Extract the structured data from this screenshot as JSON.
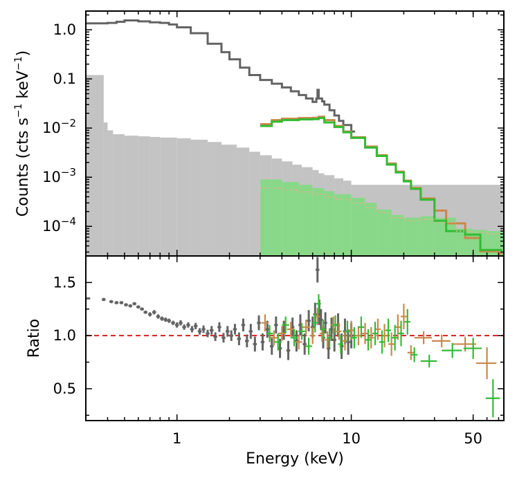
{
  "chart_data": [
    {
      "panel": "top",
      "type": "line",
      "ylabel": "Counts (cts s⁻¹ keV⁻¹)",
      "ylabel_parts": {
        "a": "Counts (cts s",
        "s1": "−1",
        "b": " keV",
        "s2": "−1",
        "c": ")"
      },
      "xscale": "log",
      "yscale": "log",
      "xlim": [
        0.3,
        75
      ],
      "ylim": [
        2.5e-05,
        2.4
      ],
      "yticks": [
        {
          "value": 1.0,
          "base": "1.0"
        },
        {
          "value": 0.1,
          "base": "0.1"
        },
        {
          "value": 0.01,
          "base": "10",
          "exp": "−2"
        },
        {
          "value": 0.001,
          "base": "10",
          "exp": "−3"
        },
        {
          "value": 0.0001,
          "base": "10",
          "exp": "−4"
        }
      ],
      "series": [
        {
          "color": "#636363",
          "style": "step-line",
          "x": [
            0.3,
            0.4,
            0.45,
            0.5,
            0.55,
            0.6,
            0.7,
            0.8,
            0.9,
            1.0,
            1.2,
            1.5,
            1.8,
            2.0,
            2.3,
            2.6,
            3.0,
            3.5,
            4.0,
            4.5,
            5.0,
            5.5,
            6.0,
            6.3,
            6.4,
            6.5,
            6.8,
            7.0,
            7.5,
            8.0,
            8.5,
            9.0,
            10.0
          ],
          "values": [
            1.35,
            1.38,
            1.45,
            1.55,
            1.55,
            1.48,
            1.42,
            1.38,
            1.28,
            1.12,
            0.85,
            0.52,
            0.35,
            0.25,
            0.17,
            0.12,
            0.095,
            0.08,
            0.067,
            0.056,
            0.047,
            0.04,
            0.034,
            0.04,
            0.06,
            0.04,
            0.035,
            0.03,
            0.023,
            0.018,
            0.014,
            0.0115,
            0.0085
          ]
        },
        {
          "color": "#c8884a",
          "style": "step-line",
          "x": [
            3.0,
            3.5,
            4.0,
            5.0,
            6.0,
            6.5,
            7.0,
            8.0,
            9.0,
            10.0,
            12.0,
            14.0,
            16.0,
            18.0,
            20.0,
            22.0,
            25.0,
            30.0,
            35.0,
            45.0,
            55.0,
            70.0
          ],
          "values": [
            0.012,
            0.0145,
            0.0155,
            0.016,
            0.0162,
            0.017,
            0.0145,
            0.011,
            0.0085,
            0.0065,
            0.0042,
            0.0028,
            0.0019,
            0.0013,
            0.00085,
            0.0006,
            0.00037,
            0.00021,
            0.000115,
            5.8e-05,
            3.1e-05,
            2.8e-05
          ]
        },
        {
          "color": "#33bb33",
          "style": "step-line",
          "x": [
            3.0,
            3.5,
            4.0,
            5.0,
            6.0,
            6.5,
            7.0,
            8.0,
            9.0,
            10.0,
            12.0,
            14.0,
            16.0,
            18.0,
            20.0,
            22.0,
            25.0,
            30.0,
            35.0,
            45.0,
            55.0,
            70.0
          ],
          "values": [
            0.011,
            0.0135,
            0.0145,
            0.015,
            0.0152,
            0.016,
            0.013,
            0.0105,
            0.0082,
            0.0063,
            0.004,
            0.0027,
            0.0018,
            0.00125,
            0.00082,
            0.00058,
            0.00035,
            0.00013,
            8e-05,
            6.8e-05,
            3.3e-05,
            3.3e-05
          ]
        },
        {
          "color": "#b8b8b8",
          "style": "filled-histogram",
          "x": [
            0.3,
            0.36,
            0.38,
            0.4,
            0.43,
            0.5,
            0.6,
            0.7,
            0.8,
            1.0,
            1.2,
            1.5,
            1.8,
            2.2,
            2.6,
            3.0,
            3.5,
            4.0,
            4.6,
            5.2,
            6.0,
            6.5,
            7.0,
            8.0,
            9.0,
            10.0
          ],
          "values": [
            0.12,
            0.12,
            0.013,
            0.009,
            0.0075,
            0.007,
            0.0068,
            0.0066,
            0.0064,
            0.0062,
            0.0058,
            0.0052,
            0.0046,
            0.004,
            0.0033,
            0.0028,
            0.0024,
            0.0021,
            0.0018,
            0.0016,
            0.0014,
            0.0012,
            0.0011,
            0.00095,
            0.00085,
            0.0007
          ]
        },
        {
          "color": "#7fdc7f",
          "style": "filled-histogram",
          "x": [
            3.0,
            4.0,
            5.0,
            6.0,
            7.0,
            8.0,
            10.0,
            12.0,
            14.0,
            17.0,
            20.0,
            25.0,
            30.0,
            40.0,
            50.0,
            60.0,
            75.0
          ],
          "values": [
            0.0009,
            0.0008,
            0.0007,
            0.0006,
            0.00052,
            0.00045,
            0.00038,
            0.0003,
            0.00022,
            0.00017,
            0.00015,
            0.00016,
            0.00015,
            9e-05,
            8.5e-05,
            8e-05,
            7e-05
          ]
        },
        {
          "color": "#e8b08a",
          "style": "dotted-line",
          "x": [
            3.0,
            4.0,
            5.0,
            6.0,
            7.0,
            8.0,
            10.0,
            12.0,
            14.0,
            17.0,
            20.0,
            25.0,
            30.0,
            40.0,
            50.0,
            60.0,
            75.0
          ],
          "values": [
            0.0006,
            0.00055,
            0.0005,
            0.00045,
            0.0004,
            0.00036,
            0.0003,
            0.00024,
            0.00019,
            0.00015,
            0.00013,
            0.00014,
            0.00012,
            8e-05,
            7.5e-05,
            7e-05,
            6.5e-05
          ]
        }
      ]
    },
    {
      "panel": "bottom",
      "type": "scatter",
      "xlabel": "Energy (keV)",
      "ylabel": "Ratio",
      "xscale": "log",
      "xlim": [
        0.3,
        75
      ],
      "ylim": [
        0.2,
        1.75
      ],
      "xticks": [
        {
          "value": 1,
          "label": "1"
        },
        {
          "value": 10,
          "label": "10"
        },
        {
          "value": 50,
          "label": "50"
        }
      ],
      "yticks": [
        {
          "value": 0.5,
          "label": "0.5"
        },
        {
          "value": 1.0,
          "label": "1.0"
        },
        {
          "value": 1.5,
          "label": "1.5"
        }
      ],
      "reference_line": {
        "y": 1.0,
        "color": "#dd1c1c",
        "style": "dashed"
      },
      "series": [
        {
          "color": "#636363",
          "x": [
            0.31,
            0.38,
            0.42,
            0.45,
            0.48,
            0.51,
            0.54,
            0.57,
            0.6,
            0.63,
            0.66,
            0.7,
            0.74,
            0.78,
            0.82,
            0.86,
            0.9,
            0.95,
            1.0,
            1.05,
            1.1,
            1.16,
            1.22,
            1.28,
            1.35,
            1.42,
            1.5,
            1.58,
            1.66,
            1.75,
            1.85,
            1.95,
            2.05,
            2.15,
            2.27,
            2.4,
            2.52,
            2.65,
            2.8,
            2.95,
            3.1,
            3.3,
            3.5,
            3.7,
            3.9,
            4.1,
            4.35,
            4.6,
            4.85,
            5.1,
            5.4,
            5.7,
            6.0,
            6.2,
            6.4,
            6.55,
            6.7,
            6.9,
            7.1,
            7.4,
            7.7,
            8.0,
            8.4,
            8.8,
            9.2,
            9.6,
            10.0
          ],
          "values": [
            1.35,
            1.34,
            1.32,
            1.31,
            1.31,
            1.29,
            1.28,
            1.3,
            1.27,
            1.25,
            1.22,
            1.2,
            1.22,
            1.18,
            1.16,
            1.15,
            1.14,
            1.12,
            1.1,
            1.12,
            1.08,
            1.1,
            1.06,
            1.09,
            1.04,
            1.06,
            1.02,
            1.05,
            0.99,
            1.08,
            0.98,
            1.04,
            1.0,
            1.06,
            0.97,
            1.1,
            0.95,
            1.04,
            0.92,
            1.12,
            0.94,
            1.06,
            0.9,
            1.1,
            0.88,
            1.05,
            0.86,
            1.08,
            0.95,
            1.1,
            0.92,
            1.14,
            1.08,
            1.2,
            1.62,
            1.22,
            1.15,
            0.98,
            1.12,
            0.88,
            1.06,
            0.96,
            1.1,
            0.9,
            1.04,
            0.94,
            1.0
          ],
          "yerr": [
            0.01,
            0.015,
            0.015,
            0.015,
            0.015,
            0.015,
            0.015,
            0.015,
            0.015,
            0.015,
            0.015,
            0.02,
            0.02,
            0.02,
            0.02,
            0.02,
            0.02,
            0.02,
            0.025,
            0.025,
            0.025,
            0.025,
            0.03,
            0.03,
            0.03,
            0.035,
            0.035,
            0.04,
            0.04,
            0.045,
            0.045,
            0.05,
            0.05,
            0.05,
            0.06,
            0.06,
            0.06,
            0.07,
            0.07,
            0.07,
            0.08,
            0.08,
            0.08,
            0.08,
            0.09,
            0.09,
            0.09,
            0.09,
            0.1,
            0.1,
            0.1,
            0.1,
            0.1,
            0.11,
            0.12,
            0.12,
            0.1,
            0.1,
            0.1,
            0.1,
            0.11,
            0.11,
            0.11,
            0.12,
            0.12,
            0.12,
            0.12
          ]
        },
        {
          "color": "#c8884a",
          "x": [
            3.2,
            3.6,
            4.0,
            4.5,
            5.0,
            5.5,
            6.0,
            6.4,
            6.8,
            7.3,
            7.9,
            8.5,
            9.2,
            10.0,
            11.0,
            12.0,
            13.0,
            14.2,
            15.5,
            17.0,
            18.5,
            20.0,
            22.0,
            26.0,
            33.0,
            45.0,
            60.0
          ],
          "values": [
            1.12,
            0.98,
            1.02,
            1.06,
            0.94,
            1.08,
            1.0,
            1.18,
            1.02,
            0.96,
            1.1,
            1.04,
            0.95,
            1.05,
            1.0,
            1.02,
            0.98,
            1.06,
            1.0,
            0.92,
            1.08,
            1.18,
            0.84,
            0.98,
            0.95,
            0.92,
            0.74
          ],
          "yerr": [
            0.08,
            0.07,
            0.07,
            0.07,
            0.07,
            0.07,
            0.08,
            0.08,
            0.08,
            0.08,
            0.08,
            0.08,
            0.09,
            0.09,
            0.09,
            0.1,
            0.1,
            0.1,
            0.11,
            0.11,
            0.12,
            0.12,
            0.07,
            0.06,
            0.06,
            0.07,
            0.15
          ],
          "xerr": [
            0.15,
            0.18,
            0.2,
            0.22,
            0.24,
            0.26,
            0.22,
            0.2,
            0.22,
            0.25,
            0.28,
            0.3,
            0.35,
            0.4,
            0.45,
            0.5,
            0.5,
            0.55,
            0.6,
            0.7,
            0.75,
            0.8,
            1.0,
            3.0,
            4.0,
            7.0,
            8.0
          ]
        },
        {
          "color": "#33bb33",
          "x": [
            3.4,
            3.8,
            4.2,
            4.7,
            5.2,
            5.7,
            6.2,
            6.5,
            6.9,
            7.5,
            8.1,
            8.7,
            9.5,
            10.4,
            11.4,
            12.5,
            13.7,
            15.0,
            16.3,
            17.8,
            19.3,
            21.0,
            23.0,
            28.0,
            38.0,
            50.0,
            65.0
          ],
          "values": [
            1.02,
            0.94,
            1.1,
            0.98,
            1.04,
            0.9,
            1.12,
            1.3,
            1.06,
            0.98,
            1.1,
            0.92,
            1.04,
            0.98,
            1.08,
            0.96,
            1.02,
            0.94,
            1.05,
            0.98,
            1.02,
            1.13,
            0.82,
            0.76,
            0.86,
            0.88,
            0.41
          ],
          "yerr": [
            0.08,
            0.08,
            0.08,
            0.08,
            0.08,
            0.08,
            0.09,
            0.09,
            0.09,
            0.09,
            0.09,
            0.09,
            0.1,
            0.1,
            0.1,
            0.1,
            0.11,
            0.11,
            0.11,
            0.12,
            0.12,
            0.12,
            0.07,
            0.06,
            0.07,
            0.1,
            0.18
          ],
          "xerr": [
            0.15,
            0.18,
            0.2,
            0.22,
            0.24,
            0.26,
            0.22,
            0.2,
            0.22,
            0.25,
            0.28,
            0.3,
            0.35,
            0.4,
            0.45,
            0.5,
            0.5,
            0.55,
            0.6,
            0.7,
            0.75,
            0.8,
            1.0,
            3.0,
            5.0,
            6.0,
            6.0
          ]
        }
      ]
    }
  ]
}
